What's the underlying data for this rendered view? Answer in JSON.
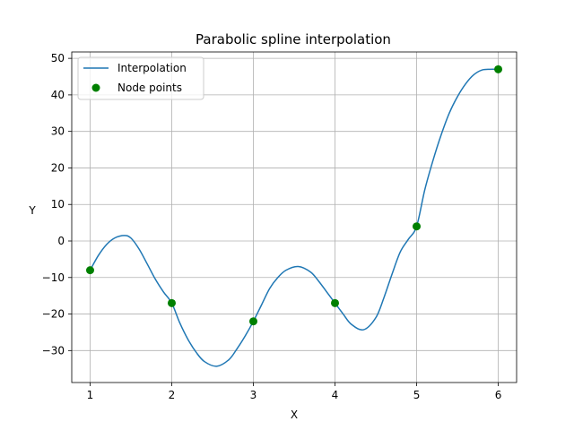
{
  "chart_data": {
    "type": "line",
    "title": "Parabolic spline interpolation",
    "xlabel": "X",
    "ylabel": "Y",
    "xlim": [
      0.775,
      6.225
    ],
    "ylim": [
      -38.75,
      51.75
    ],
    "grid": true,
    "legend_position": "top-left",
    "x_ticks": [
      1,
      2,
      3,
      4,
      5,
      6
    ],
    "x_tick_labels": [
      "1",
      "2",
      "3",
      "4",
      "5",
      "6"
    ],
    "y_ticks": [
      -30,
      -20,
      -10,
      0,
      10,
      20,
      30,
      40,
      50
    ],
    "y_tick_labels": [
      "−30",
      "−20",
      "−10",
      "0",
      "10",
      "20",
      "30",
      "40",
      "50"
    ],
    "series": [
      {
        "name": "Interpolation",
        "kind": "line",
        "color": "#1f77b4",
        "x": [
          1.0,
          1.1,
          1.2,
          1.3,
          1.42,
          1.5,
          1.6,
          1.7,
          1.8,
          1.9,
          2.0,
          2.1,
          2.2,
          2.3,
          2.4,
          2.55,
          2.7,
          2.8,
          2.9,
          3.0,
          3.1,
          3.2,
          3.3,
          3.4,
          3.55,
          3.7,
          3.8,
          3.9,
          4.0,
          4.1,
          4.2,
          4.35,
          4.5,
          4.6,
          4.7,
          4.8,
          4.9,
          5.0,
          5.1,
          5.2,
          5.3,
          5.4,
          5.5,
          5.6,
          5.7,
          5.8,
          5.9,
          6.0
        ],
        "y": [
          -8.0,
          -4.0,
          -1.0,
          0.8,
          1.5,
          0.8,
          -2.2,
          -6.3,
          -10.5,
          -14.0,
          -17.0,
          -22.5,
          -27.0,
          -30.5,
          -33.0,
          -34.3,
          -32.5,
          -29.5,
          -26.0,
          -22.0,
          -17.5,
          -13.0,
          -10.0,
          -8.0,
          -7.0,
          -8.5,
          -11.0,
          -14.0,
          -17.0,
          -20.0,
          -22.8,
          -24.3,
          -21.0,
          -15.5,
          -9.0,
          -3.0,
          0.5,
          4.0,
          14.0,
          22.0,
          29.0,
          35.0,
          39.5,
          43.0,
          45.5,
          46.8,
          47.0,
          47.0
        ]
      },
      {
        "name": "Node points",
        "kind": "scatter",
        "color": "#008000",
        "x": [
          1,
          2,
          3,
          4,
          5,
          6
        ],
        "y": [
          -8,
          -17,
          -22,
          -17,
          4,
          47
        ]
      }
    ]
  }
}
